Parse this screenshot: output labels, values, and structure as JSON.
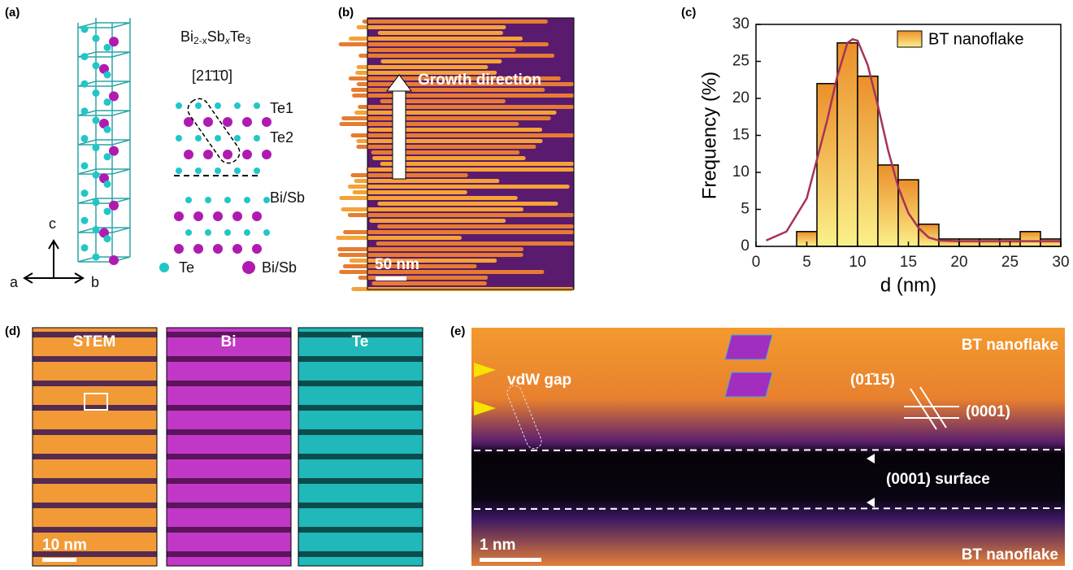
{
  "panels": {
    "a": {
      "label": "(a)",
      "formula": [
        "Bi",
        "2-x",
        "Sb",
        "x",
        "Te",
        "3"
      ],
      "direction": "[21̄1̄0]",
      "site_labels": [
        "Te1",
        "Te2",
        "Bi/Sb"
      ],
      "axes": [
        "c",
        "a",
        "b"
      ],
      "legend": [
        "Te",
        "Bi/Sb"
      ]
    },
    "b": {
      "label": "(b)",
      "annotation": "Growth direction",
      "scale_bar": "50 nm"
    },
    "c": {
      "label": "(c)",
      "chart_data": {
        "type": "histogram",
        "xlabel": "d (nm)",
        "ylabel": "Frequency (%)",
        "bins": [
          4,
          6,
          8,
          10,
          12,
          14,
          16,
          18,
          20,
          22,
          24,
          26,
          28,
          30
        ],
        "values": [
          2,
          22,
          27.5,
          23,
          11,
          9,
          3,
          1,
          1,
          1,
          1,
          2,
          1
        ],
        "series": [
          {
            "name": "BT nanoflake",
            "color": "#f0a030"
          }
        ],
        "fit": {
          "color": "#a8325a",
          "x": [
            1,
            3,
            5,
            7,
            8,
            9,
            9.5,
            10,
            11,
            12,
            13,
            14,
            15,
            16,
            17,
            18,
            20,
            30
          ],
          "values": [
            0.8,
            2,
            6.5,
            17,
            23,
            27.5,
            28,
            27.8,
            24.5,
            19,
            13,
            8,
            4.5,
            2.5,
            1.2,
            0.8,
            0.7,
            0.7
          ]
        },
        "xlim": [
          0,
          30
        ],
        "ylim": [
          0,
          30
        ],
        "xticks": [
          0,
          5,
          10,
          15,
          20,
          25,
          30
        ],
        "yticks": [
          0,
          5,
          10,
          15,
          20,
          25,
          30
        ],
        "legend": "upper right"
      }
    },
    "d": {
      "label": "(d)",
      "maps": [
        "STEM",
        "Bi",
        "Te"
      ],
      "scale_bar": "10 nm"
    },
    "e": {
      "label": "(e)",
      "top_material": "BT nanoflake",
      "bottom_material": "BT nanoflake",
      "gap": "vdW gap",
      "plane_1": "(01̄15)",
      "plane_2": "(0001)",
      "surface": "(0001) surface",
      "scale_bar": "1 nm"
    }
  }
}
